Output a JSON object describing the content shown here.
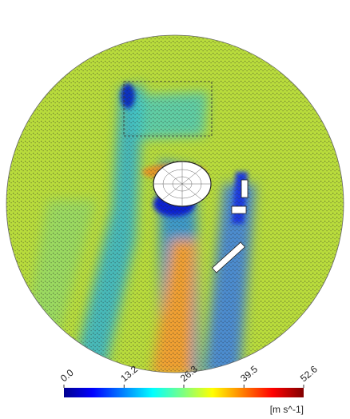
{
  "colorbar": {
    "ticks": [
      {
        "value": 0,
        "label": "0.0"
      },
      {
        "value": 13.2,
        "label": "13.2"
      },
      {
        "value": 26.3,
        "label": "26.3"
      },
      {
        "value": 39.5,
        "label": "39.5"
      },
      {
        "value": 52.6,
        "label": "52.6"
      }
    ],
    "unit": "[m s^-1]"
  }
}
